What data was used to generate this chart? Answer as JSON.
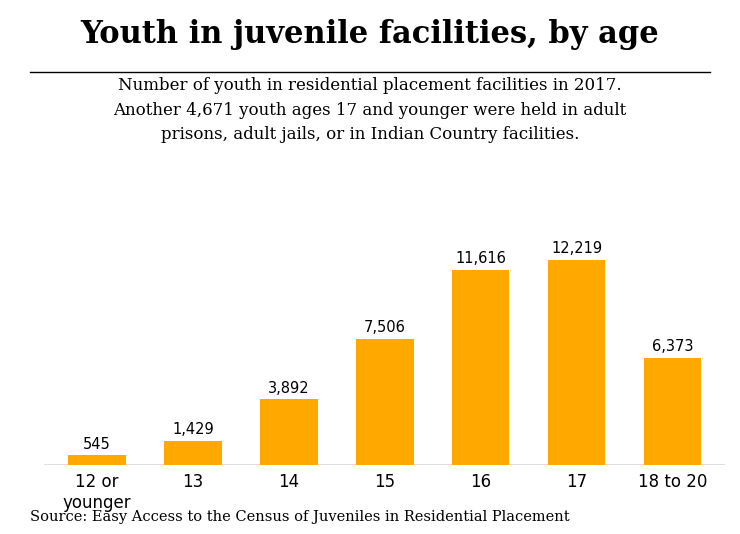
{
  "title": "Youth in juvenile facilities, by age",
  "subtitle_lines": [
    "Number of youth in residential placement facilities in 2017.",
    "Another 4,671 youth ages 17 and younger were held in adult",
    "prisons, adult jails, or in Indian Country facilities."
  ],
  "source": "Source: Easy Access to the Census of Juveniles in Residential Placement",
  "categories": [
    "12 or\nyounger",
    "13",
    "14",
    "15",
    "16",
    "17",
    "18 to 20"
  ],
  "values": [
    545,
    1429,
    3892,
    7506,
    11616,
    12219,
    6373
  ],
  "bar_color": "#FFA800",
  "background_color": "#FFFFFF",
  "ylim": [
    0,
    14000
  ],
  "label_fontsize": 10.5,
  "title_fontsize": 22,
  "subtitle_fontsize": 12,
  "source_fontsize": 10.5,
  "tick_fontsize": 12,
  "bar_width": 0.6
}
